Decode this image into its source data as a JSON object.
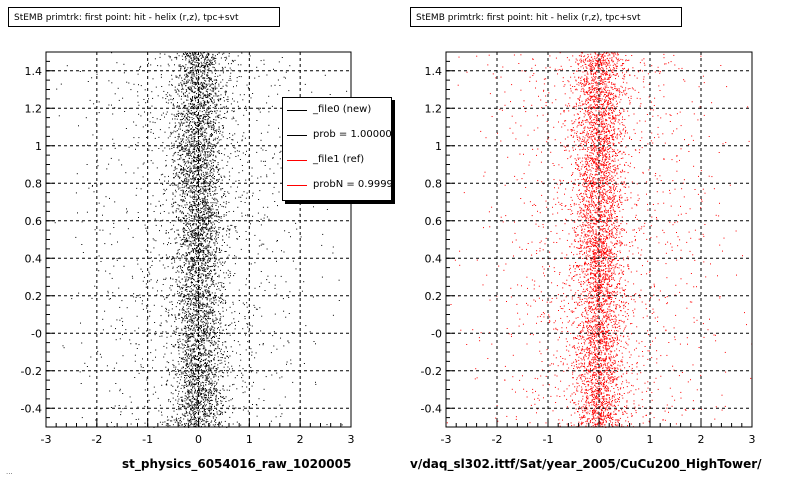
{
  "titles": {
    "left": "StEMB primtrk: first point: hit - helix (r,z), tpc+svt",
    "right": "StEMB primtrk: first point: hit - helix (r,z), tpc+svt"
  },
  "footers": {
    "left": "st_physics_6054016_raw_1020005",
    "right": "v/daq_sl302.ittf/Sat/year_2005/CuCu200_HighTower/"
  },
  "corner_stamp": "...",
  "legend": {
    "entries": [
      {
        "label": "_file0 (new)",
        "color": "#000000"
      },
      {
        "label": "prob = 1.000000",
        "color": "#000000"
      },
      {
        "label": "_file1 (ref)",
        "color": "#ff0000"
      },
      {
        "label": "probN = 0.999995",
        "color": "#ff0000"
      }
    ]
  },
  "chart_data": [
    {
      "type": "scatter",
      "title": "StEMB primtrk: first point: hit - helix (r,z), tpc+svt",
      "xlabel": "st_physics_6054016_raw_1020005",
      "ylabel": "",
      "xlim": [
        -3,
        3
      ],
      "ylim": [
        -0.5,
        1.5
      ],
      "x_ticks": [
        "-3",
        "-2",
        "-1",
        "0",
        "1",
        "2",
        "3"
      ],
      "y_ticks": [
        "-0.4",
        "-0.2",
        "-0",
        "0.2",
        "0.4",
        "0.6",
        "0.8",
        "1",
        "1.2",
        "1.4"
      ],
      "grid": true,
      "legend_position": "top-right",
      "marker_color": "#000000",
      "distribution": {
        "center_x": 0.0,
        "core_sigma_x": 0.25,
        "halo_sigma_x": 1.1,
        "points": 6000
      }
    },
    {
      "type": "scatter",
      "title": "StEMB primtrk: first point: hit - helix (r,z), tpc+svt",
      "xlabel": "v/daq_sl302.ittf/Sat/year_2005/CuCu200_HighTower/",
      "ylabel": "",
      "xlim": [
        -3,
        3
      ],
      "ylim": [
        -0.5,
        1.5
      ],
      "x_ticks": [
        "-3",
        "-2",
        "-1",
        "0",
        "1",
        "2",
        "3"
      ],
      "y_ticks": [
        "-0.4",
        "-0.2",
        "-0",
        "0.2",
        "0.4",
        "0.6",
        "0.8",
        "1",
        "1.2",
        "1.4"
      ],
      "grid": true,
      "marker_color": "#ff0000",
      "distribution": {
        "center_x": 0.0,
        "core_sigma_x": 0.25,
        "halo_sigma_x": 1.1,
        "points": 6000
      }
    }
  ]
}
